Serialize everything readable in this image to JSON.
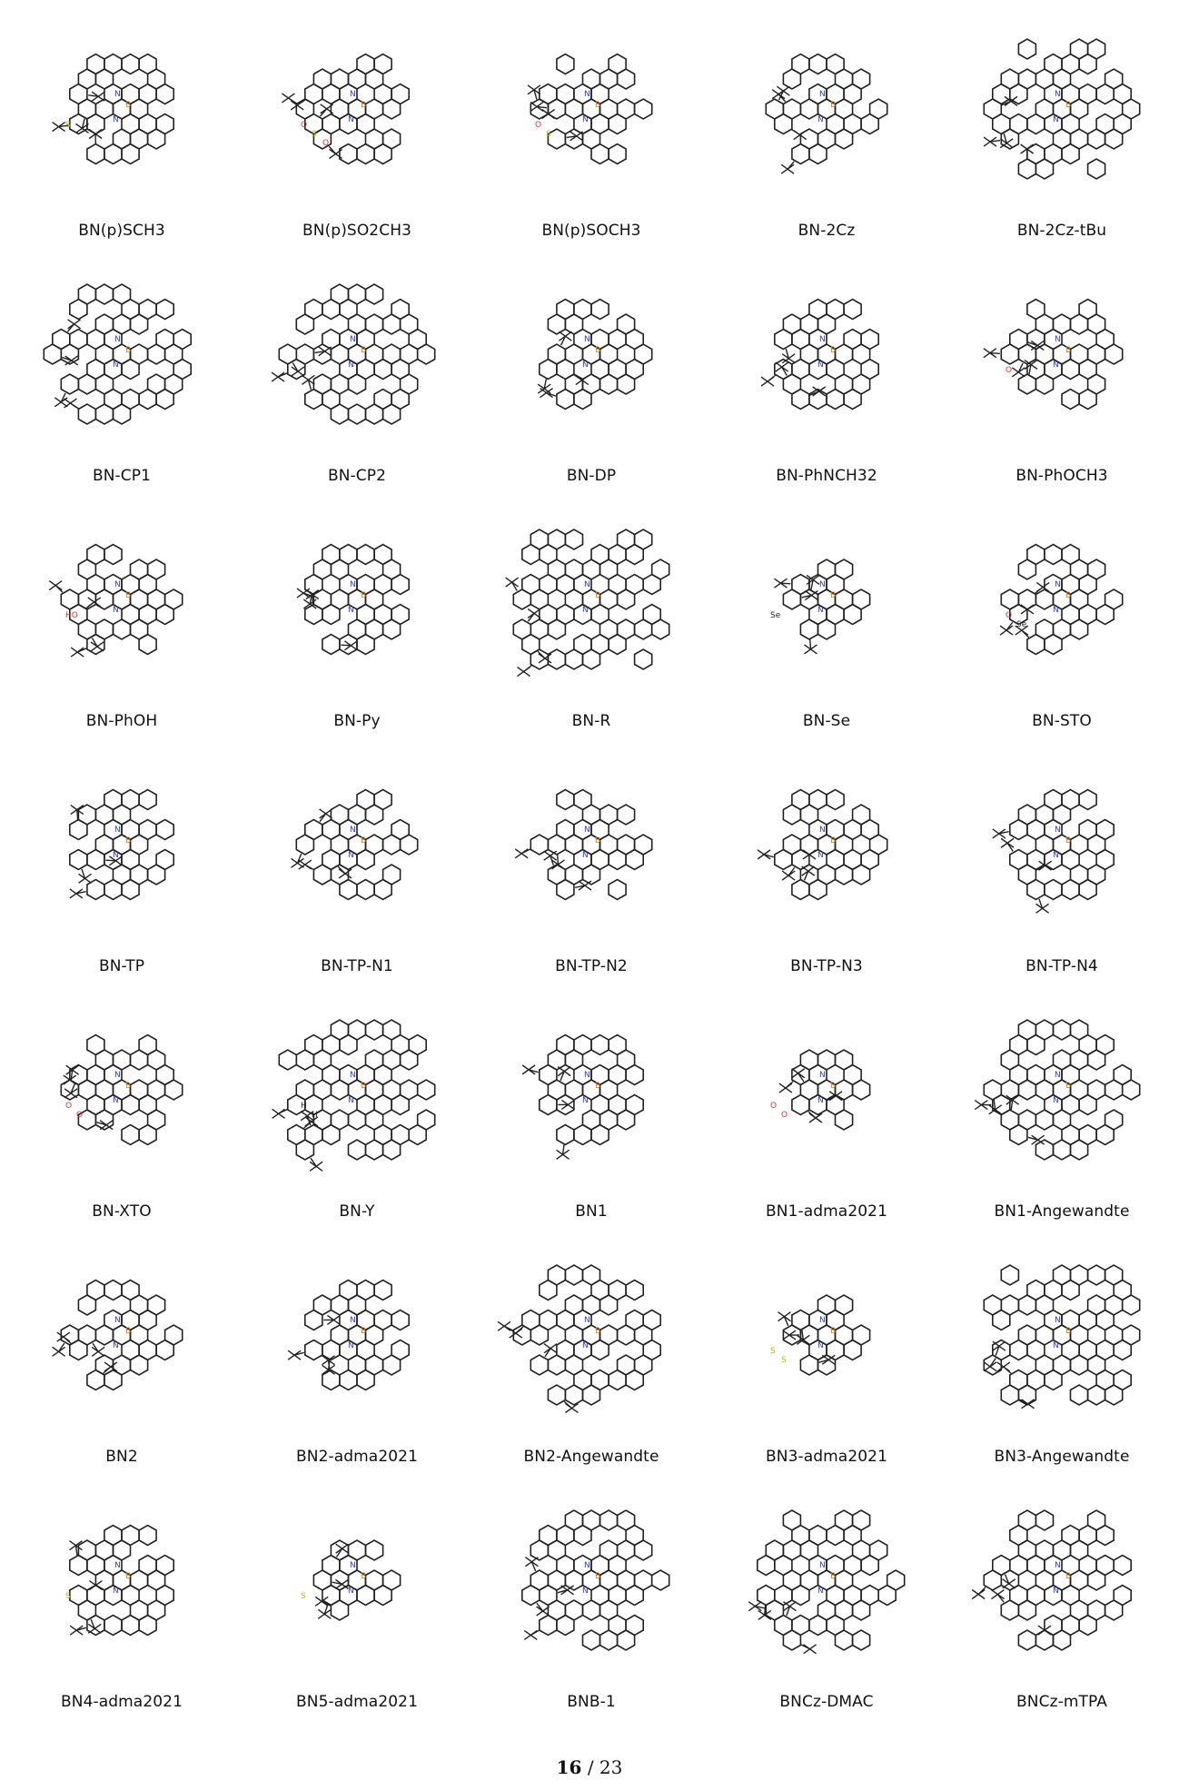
{
  "molecules": [
    {
      "name": "BN(p)SCH3",
      "icon": "molecule-structure-icon",
      "hetero": [
        [
          "S",
          "#b5b800"
        ]
      ],
      "size": 3
    },
    {
      "name": "BN(p)SO2CH3",
      "icon": "molecule-structure-icon",
      "hetero": [
        [
          "O",
          "#e03030"
        ],
        [
          "S",
          "#b5b800"
        ],
        [
          "O",
          "#e03030"
        ]
      ],
      "size": 3
    },
    {
      "name": "BN(p)SOCH3",
      "icon": "molecule-structure-icon",
      "hetero": [
        [
          "O",
          "#e03030"
        ],
        [
          "S",
          "#b5b800"
        ]
      ],
      "size": 3
    },
    {
      "name": "BN-2Cz",
      "icon": "molecule-structure-icon",
      "hetero": [],
      "size": 3
    },
    {
      "name": "BN-2Cz-tBu",
      "icon": "molecule-structure-icon",
      "hetero": [],
      "size": 4
    },
    {
      "name": "BN-CP1",
      "icon": "molecule-structure-icon",
      "hetero": [],
      "size": 4
    },
    {
      "name": "BN-CP2",
      "icon": "molecule-structure-icon",
      "hetero": [],
      "size": 4
    },
    {
      "name": "BN-DP",
      "icon": "molecule-structure-icon",
      "hetero": [],
      "size": 3
    },
    {
      "name": "BN-PhNCH32",
      "icon": "molecule-structure-icon",
      "hetero": [],
      "size": 3
    },
    {
      "name": "BN-PhOCH3",
      "icon": "molecule-structure-icon",
      "hetero": [
        [
          "O",
          "#e03030"
        ]
      ],
      "size": 3
    },
    {
      "name": "BN-PhOH",
      "icon": "molecule-structure-icon",
      "hetero": [
        [
          "HO",
          "#e03030"
        ]
      ],
      "size": 3
    },
    {
      "name": "BN-Py",
      "icon": "molecule-structure-icon",
      "hetero": [],
      "size": 3
    },
    {
      "name": "BN-R",
      "icon": "molecule-structure-icon",
      "hetero": [],
      "size": 5
    },
    {
      "name": "BN-Se",
      "icon": "molecule-structure-icon",
      "hetero": [
        [
          "Se",
          "#222222"
        ]
      ],
      "size": 2
    },
    {
      "name": "BN-STO",
      "icon": "molecule-structure-icon",
      "hetero": [
        [
          "O",
          "#e03030"
        ],
        [
          "Se",
          "#222222"
        ]
      ],
      "size": 3
    },
    {
      "name": "BN-TP",
      "icon": "molecule-structure-icon",
      "hetero": [],
      "size": 3
    },
    {
      "name": "BN-TP-N1",
      "icon": "molecule-structure-icon",
      "hetero": [],
      "size": 3
    },
    {
      "name": "BN-TP-N2",
      "icon": "molecule-structure-icon",
      "hetero": [],
      "size": 3
    },
    {
      "name": "BN-TP-N3",
      "icon": "molecule-structure-icon",
      "hetero": [],
      "size": 3
    },
    {
      "name": "BN-TP-N4",
      "icon": "molecule-structure-icon",
      "hetero": [],
      "size": 3
    },
    {
      "name": "BN-XTO",
      "icon": "molecule-structure-icon",
      "hetero": [
        [
          "O",
          "#e03030"
        ],
        [
          "O",
          "#e03030"
        ]
      ],
      "size": 3
    },
    {
      "name": "BN-Y",
      "icon": "molecule-structure-icon",
      "hetero": [
        [
          "H",
          "#222222"
        ],
        [
          "H",
          "#222222"
        ]
      ],
      "size": 5
    },
    {
      "name": "BN1",
      "icon": "molecule-structure-icon",
      "hetero": [],
      "size": 3
    },
    {
      "name": "BN1-adma2021",
      "icon": "molecule-structure-icon",
      "hetero": [
        [
          "O",
          "#e03030"
        ],
        [
          "O",
          "#e03030"
        ]
      ],
      "size": 2
    },
    {
      "name": "BN1-Angewandte",
      "icon": "molecule-structure-icon",
      "hetero": [],
      "size": 4
    },
    {
      "name": "BN2",
      "icon": "molecule-structure-icon",
      "hetero": [],
      "size": 3
    },
    {
      "name": "BN2-adma2021",
      "icon": "molecule-structure-icon",
      "hetero": [],
      "size": 3
    },
    {
      "name": "BN2-Angewandte",
      "icon": "molecule-structure-icon",
      "hetero": [],
      "size": 4
    },
    {
      "name": "BN3-adma2021",
      "icon": "molecule-structure-icon",
      "hetero": [
        [
          "S",
          "#b5b800"
        ],
        [
          "S",
          "#b5b800"
        ]
      ],
      "size": 2
    },
    {
      "name": "BN3-Angewandte",
      "icon": "molecule-structure-icon",
      "hetero": [],
      "size": 5
    },
    {
      "name": "BN4-adma2021",
      "icon": "molecule-structure-icon",
      "hetero": [
        [
          "S",
          "#b5b800"
        ]
      ],
      "size": 3
    },
    {
      "name": "BN5-adma2021",
      "icon": "molecule-structure-icon",
      "hetero": [
        [
          "S",
          "#b5b800"
        ]
      ],
      "size": 2
    },
    {
      "name": "BNB-1",
      "icon": "molecule-structure-icon",
      "hetero": [],
      "size": 4
    },
    {
      "name": "BNCz-DMAC",
      "icon": "molecule-structure-icon",
      "hetero": [],
      "size": 4
    },
    {
      "name": "BNCz-mTPA",
      "icon": "molecule-structure-icon",
      "hetero": [],
      "size": 4
    }
  ],
  "footer": {
    "current_page": "16",
    "total_pages": "/ 23"
  },
  "colors": {
    "bond": "#222222",
    "nitrogen": "#2a3ad8",
    "boron": "#d08020",
    "label": "#111111"
  }
}
